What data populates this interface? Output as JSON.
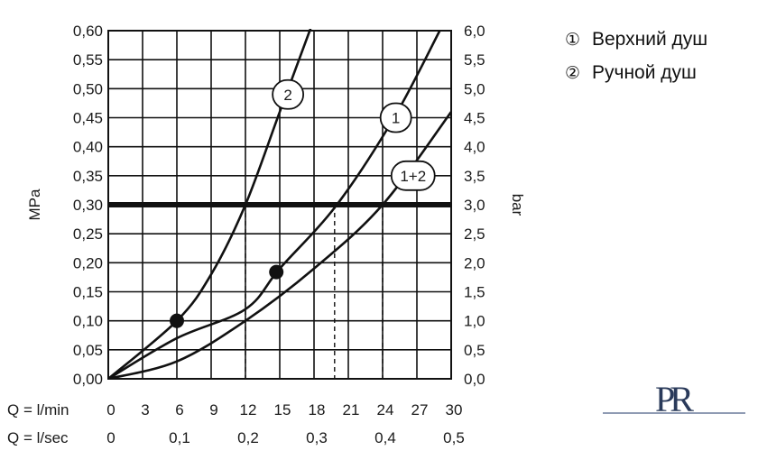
{
  "chart_data": {
    "type": "line",
    "ylabel_left": "MPa",
    "ylabel_right": "bar",
    "yticks_left": [
      "0,00",
      "0,05",
      "0,10",
      "0,15",
      "0,20",
      "0,25",
      "0,30",
      "0,35",
      "0,40",
      "0,45",
      "0,50",
      "0,55",
      "0,60"
    ],
    "yticks_right": [
      "0,0",
      "0,5",
      "1,0",
      "1,5",
      "2,0",
      "2,5",
      "3,0",
      "3,5",
      "4,0",
      "4,5",
      "5,0",
      "5,5",
      "6,0"
    ],
    "ylim": [
      0,
      0.6
    ],
    "x_lmin_label": "Q = l/min",
    "x_lmin_ticks": [
      "0",
      "3",
      "6",
      "9",
      "12",
      "15",
      "18",
      "21",
      "24",
      "27",
      "30"
    ],
    "x_lsec_label": "Q = l/sec",
    "x_lsec_ticks": [
      "0",
      "0,1",
      "0,2",
      "0,3",
      "0,4",
      "0,5"
    ],
    "xlim": [
      0,
      30
    ],
    "grid": true,
    "reference_line": {
      "pressure_mpa": 0.3,
      "color": "#111111"
    },
    "series": [
      {
        "name": "2",
        "x": [
          0,
          6,
          9,
          12,
          15,
          18
        ],
        "y": [
          0,
          0.1,
          0.18,
          0.3,
          0.46,
          0.62
        ]
      },
      {
        "name": "1",
        "x": [
          0,
          6,
          12,
          15,
          20,
          25,
          29
        ],
        "y": [
          0,
          0.07,
          0.12,
          0.19,
          0.3,
          0.45,
          0.6
        ]
      },
      {
        "name": "1+2",
        "x": [
          0,
          6,
          12,
          18,
          24,
          30
        ],
        "y": [
          0,
          0.03,
          0.1,
          0.19,
          0.3,
          0.46
        ]
      }
    ],
    "markers": [
      {
        "x": 6,
        "y": 0.1
      },
      {
        "x": 14.7,
        "y": 0.184
      }
    ],
    "drop_lines": [
      {
        "x": 12
      },
      {
        "x": 19.8
      },
      {
        "x": 24
      }
    ]
  },
  "legend": {
    "items": [
      {
        "num": "①",
        "label": "Верхний душ"
      },
      {
        "num": "②",
        "label": "Ручной душ"
      }
    ]
  },
  "logo": {
    "text": "PR"
  }
}
